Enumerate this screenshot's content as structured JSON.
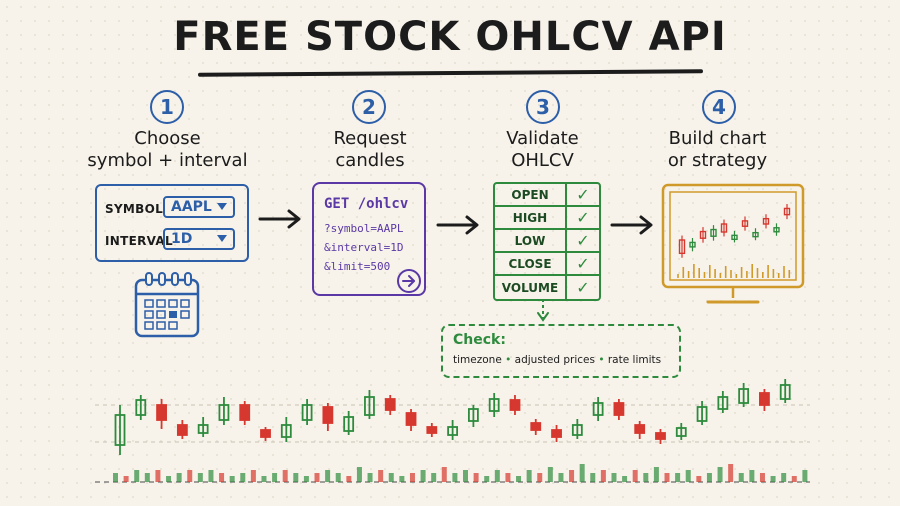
{
  "title": "FREE STOCK OHLCV API",
  "steps": [
    {
      "number": "1",
      "label_line1": "Choose",
      "label_line2": "symbol + interval"
    },
    {
      "number": "2",
      "label_line1": "Request",
      "label_line2": "candles"
    },
    {
      "number": "3",
      "label_line1": "Validate",
      "label_line2": "OHLCV"
    },
    {
      "number": "4",
      "label_line1": "Build chart",
      "label_line2": "or strategy"
    }
  ],
  "form": {
    "symbol_label": "SYMBOL",
    "symbol_value": "AAPL",
    "interval_label": "INTERVAL",
    "interval_value": "1D"
  },
  "request": {
    "line1": "GET /ohlcv",
    "line2": "?symbol=AAPL",
    "line3": "&interval=1D",
    "line4": "&limit=500"
  },
  "validate_rows": [
    "OPEN",
    "HIGH",
    "LOW",
    "CLOSE",
    "VOLUME"
  ],
  "checkmark": "✓",
  "check_note": {
    "heading": "Check:",
    "items": [
      "timezone",
      "adjusted prices",
      "rate limits"
    ]
  },
  "colors": {
    "blue": "#2d5ea8",
    "purple": "#5a38a5",
    "green": "#2e8b3e",
    "red": "#d6372e",
    "gold": "#d09a2b"
  },
  "icons": [
    "calendar-icon",
    "arrow-circle-icon",
    "right-arrow-icon",
    "down-arrow-icon",
    "monitor-icon",
    "chevron-down-icon"
  ],
  "candles": [
    {
      "o": 5,
      "c": 8,
      "h": 9,
      "l": 4
    },
    {
      "o": 8,
      "c": 9.5,
      "h": 10,
      "l": 7.5
    },
    {
      "o": 9,
      "c": 7.5,
      "h": 9.6,
      "l": 6.6
    },
    {
      "o": 7,
      "c": 6,
      "h": 7.5,
      "l": 5.6
    },
    {
      "o": 6.2,
      "c": 7,
      "h": 7.8,
      "l": 5.8
    },
    {
      "o": 7.5,
      "c": 9,
      "h": 9.8,
      "l": 7
    },
    {
      "o": 9,
      "c": 7.5,
      "h": 9.4,
      "l": 7
    },
    {
      "o": 6.5,
      "c": 5.8,
      "h": 6.8,
      "l": 5.4
    },
    {
      "o": 5.8,
      "c": 7,
      "h": 7.8,
      "l": 5.3
    },
    {
      "o": 7.5,
      "c": 9,
      "h": 9.6,
      "l": 7
    },
    {
      "o": 8.8,
      "c": 7.2,
      "h": 9.2,
      "l": 6.4
    },
    {
      "o": 6.4,
      "c": 7.8,
      "h": 8.4,
      "l": 6
    },
    {
      "o": 8,
      "c": 9.8,
      "h": 10.5,
      "l": 7.6
    },
    {
      "o": 9.6,
      "c": 8.5,
      "h": 10,
      "l": 8
    },
    {
      "o": 8.2,
      "c": 7,
      "h": 8.6,
      "l": 6.4
    },
    {
      "o": 6.8,
      "c": 6.2,
      "h": 7.2,
      "l": 5.8
    },
    {
      "o": 6,
      "c": 6.8,
      "h": 7.5,
      "l": 5.5
    },
    {
      "o": 7.4,
      "c": 8.6,
      "h": 9,
      "l": 6.8
    },
    {
      "o": 8.4,
      "c": 9.6,
      "h": 10.2,
      "l": 7.8
    },
    {
      "o": 9.5,
      "c": 8.5,
      "h": 10,
      "l": 8
    },
    {
      "o": 7.2,
      "c": 6.5,
      "h": 7.6,
      "l": 6
    },
    {
      "o": 6.5,
      "c": 5.8,
      "h": 7,
      "l": 5.3
    },
    {
      "o": 6,
      "c": 7,
      "h": 7.6,
      "l": 5.6
    },
    {
      "o": 8,
      "c": 9.2,
      "h": 9.8,
      "l": 7.4
    },
    {
      "o": 9.2,
      "c": 8,
      "h": 9.6,
      "l": 7.5
    },
    {
      "o": 7,
      "c": 6.2,
      "h": 7.4,
      "l": 5.6
    },
    {
      "o": 6.2,
      "c": 5.6,
      "h": 6.6,
      "l": 5.1
    },
    {
      "o": 5.9,
      "c": 6.7,
      "h": 7.2,
      "l": 5.5
    },
    {
      "o": 7.4,
      "c": 8.8,
      "h": 9.4,
      "l": 7
    },
    {
      "o": 8.6,
      "c": 9.8,
      "h": 10.4,
      "l": 8.2
    },
    {
      "o": 9.2,
      "c": 10.6,
      "h": 11.2,
      "l": 8.8
    },
    {
      "o": 10.2,
      "c": 9,
      "h": 10.6,
      "l": 8.4
    },
    {
      "o": 9.6,
      "c": 11,
      "h": 11.6,
      "l": 9.2
    }
  ],
  "volumes": [
    3,
    2,
    4,
    3,
    4,
    2,
    3,
    4,
    3,
    4,
    3,
    2,
    3,
    4,
    2,
    3,
    4,
    3,
    2,
    3,
    4,
    3,
    2,
    5,
    3,
    4,
    3,
    2,
    3,
    4,
    3,
    5,
    3,
    4,
    3,
    2,
    4,
    3,
    2,
    4,
    3,
    5,
    3,
    4,
    6,
    3,
    4,
    3,
    2,
    4,
    3,
    5,
    3,
    3,
    4,
    2,
    3,
    5,
    6,
    3,
    4,
    3,
    2,
    3,
    2,
    4
  ]
}
